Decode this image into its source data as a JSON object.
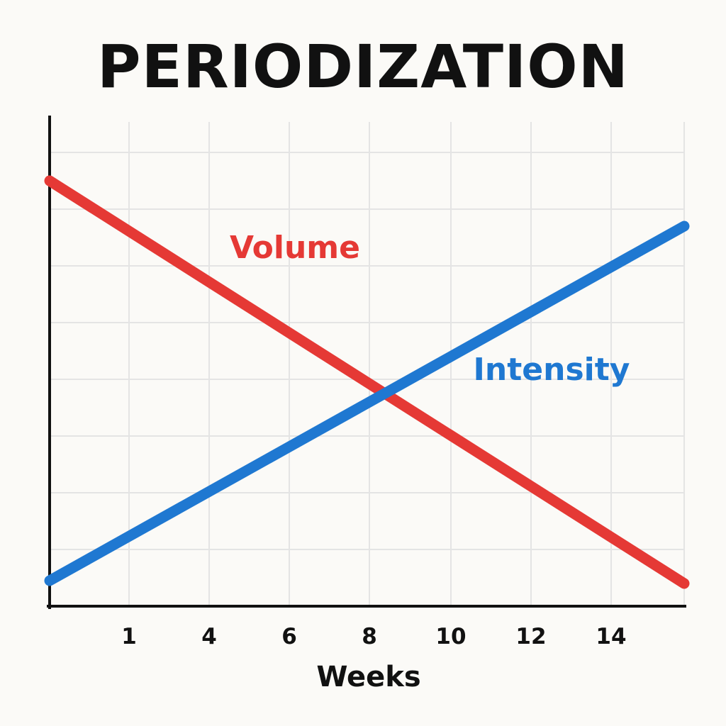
{
  "chart_data": {
    "type": "line",
    "title": "PERIODIZATION",
    "xlabel": "Weeks",
    "ylabel": "",
    "x_ticks": [
      "1",
      "4",
      "6",
      "8",
      "10",
      "12",
      "14"
    ],
    "xlim": [
      0,
      16
    ],
    "ylim": [
      0,
      8
    ],
    "grid": true,
    "y_tick_labels_shown": false,
    "legend": "inline labels",
    "series": [
      {
        "name": "Volume",
        "color": "#e53935",
        "x": [
          0,
          16
        ],
        "y": [
          7.5,
          0.4
        ]
      },
      {
        "name": "Intensity",
        "color": "#1f78d1",
        "x": [
          0,
          16
        ],
        "y": [
          0.45,
          6.7
        ]
      }
    ]
  }
}
